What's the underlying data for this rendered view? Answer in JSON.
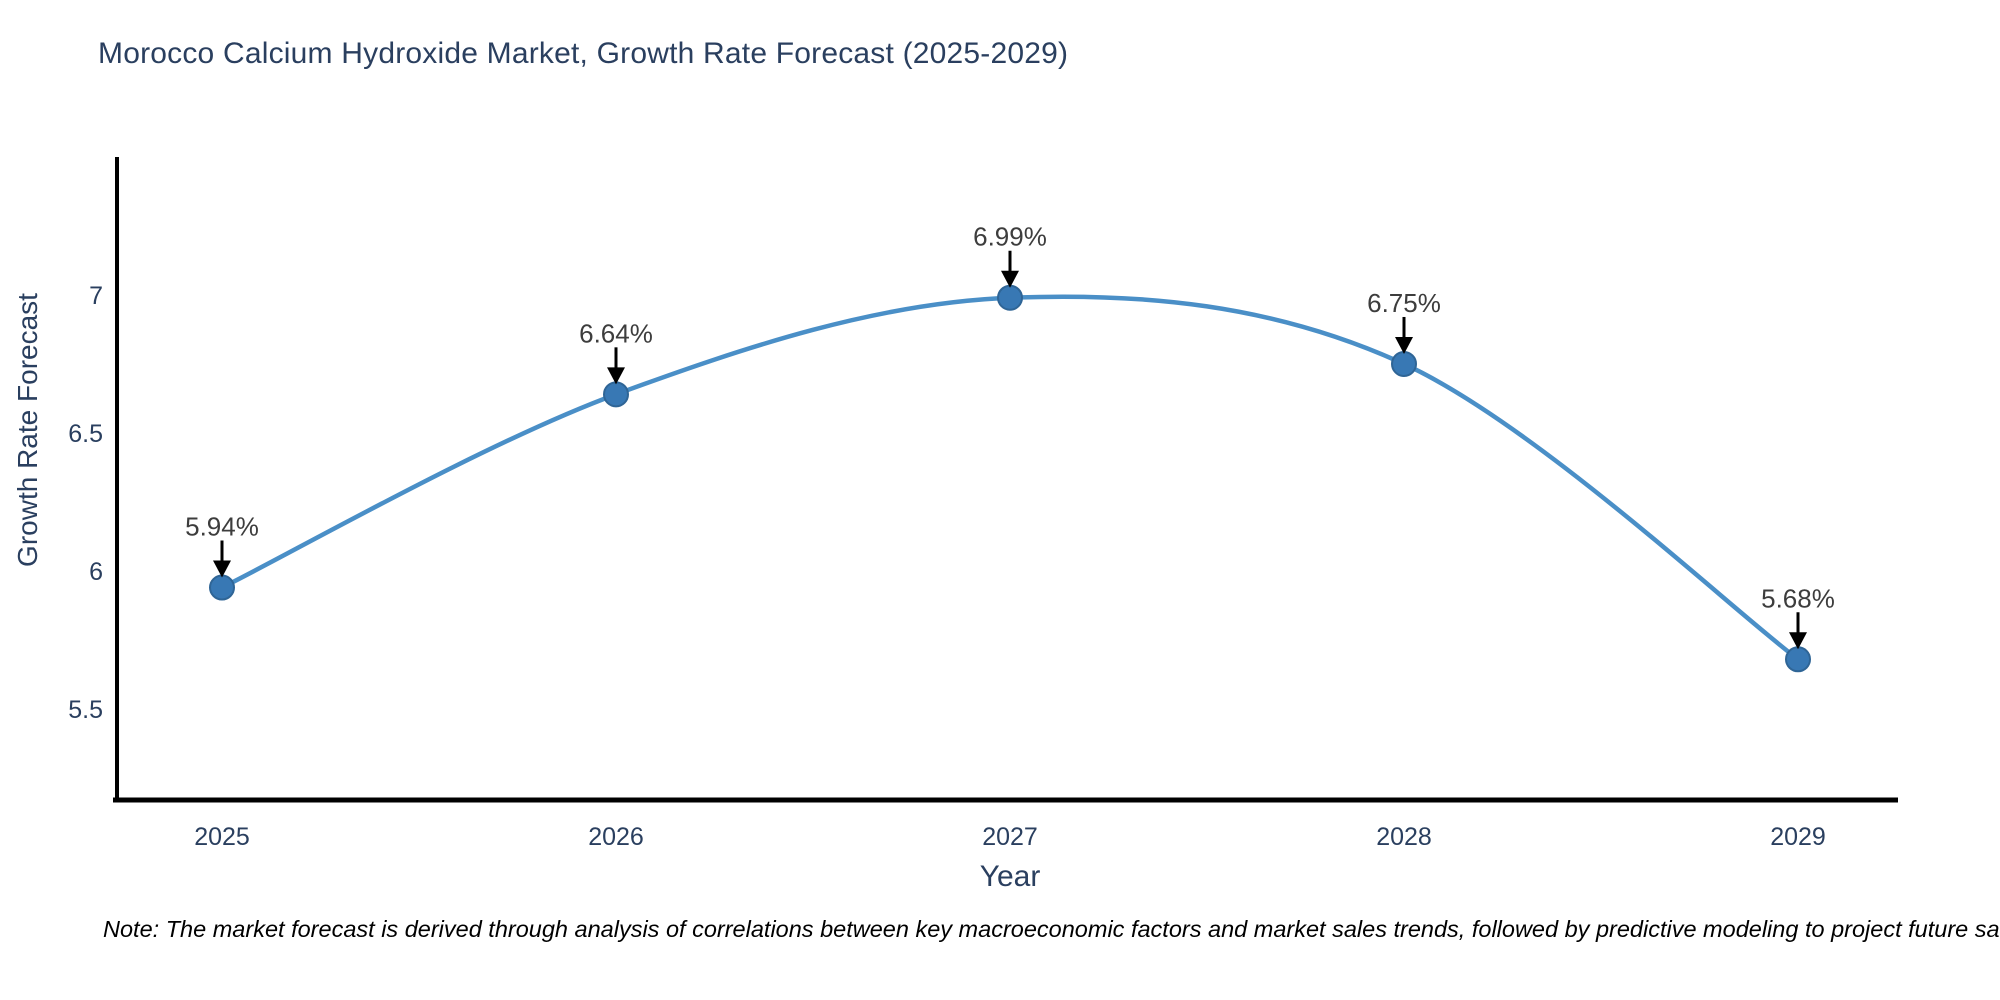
{
  "title": "Morocco Calcium Hydroxide Market, Growth Rate Forecast (2025-2029)",
  "note": "Note: The market forecast is derived through analysis of correlations between key macroeconomic factors and market sales trends, followed by predictive modeling to project future sales",
  "chart_data": {
    "type": "line",
    "title": "Morocco Calcium Hydroxide Market, Growth Rate Forecast (2025-2029)",
    "x": [
      2025,
      2026,
      2027,
      2028,
      2029
    ],
    "xtick_labels": [
      "2025",
      "2026",
      "2027",
      "2028",
      "2029"
    ],
    "series": [
      {
        "name": "Growth Rate Forecast",
        "values": [
          5.94,
          6.64,
          6.99,
          6.75,
          5.68
        ],
        "point_labels": [
          "5.94%",
          "6.64%",
          "6.99%",
          "6.75%",
          "5.68%"
        ]
      }
    ],
    "xlabel": "Year",
    "ylabel": "Growth Rate Forecast",
    "yticks": [
      5.5,
      6,
      6.5,
      7
    ],
    "ytick_labels": [
      "5.5",
      "6",
      "6.5",
      "7"
    ],
    "ylim": [
      5.17,
      7.5
    ],
    "line_shape": "spline",
    "grid": false,
    "legend": "none",
    "annotation_arrows": true,
    "colors": {
      "line": "#4a8fc7",
      "marker_fill": "#3878b4",
      "marker_edge": "#2f6596",
      "axis": "#000000",
      "axis_text": "#2a3f5f",
      "annotation_text": "#3d3d3d",
      "arrow": "#000000",
      "background": "#ffffff"
    }
  }
}
